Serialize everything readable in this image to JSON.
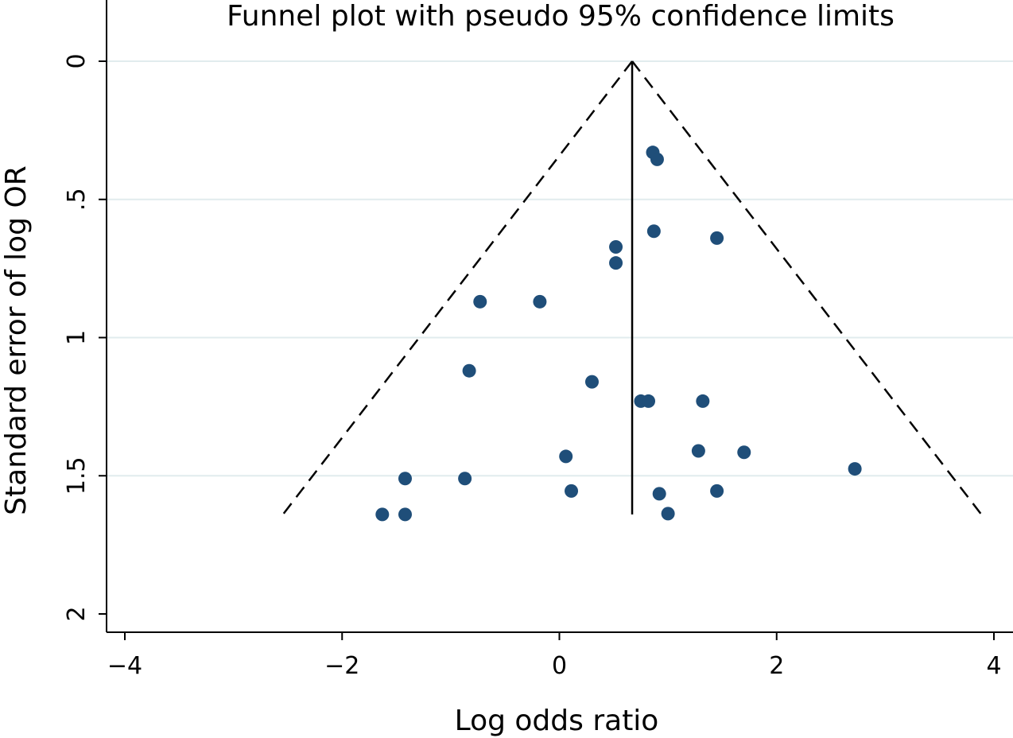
{
  "chart_data": {
    "type": "scatter",
    "title": "Funnel plot with pseudo 95% confidence limits",
    "xlabel": "Log odds ratio",
    "ylabel": "Standard error of log OR",
    "xlim": [
      -4.2,
      4.2
    ],
    "ylim": [
      0,
      2.07
    ],
    "y_reversed": true,
    "grid": "horizontal",
    "x_ticks": [
      {
        "value": -4,
        "label": "−4"
      },
      {
        "value": -2,
        "label": "−2"
      },
      {
        "value": 0,
        "label": "0"
      },
      {
        "value": 2,
        "label": "2"
      },
      {
        "value": 4,
        "label": "4"
      }
    ],
    "y_ticks": [
      {
        "value": 0,
        "label": "0"
      },
      {
        "value": 0.5,
        "label": ".5"
      },
      {
        "value": 1,
        "label": "1"
      },
      {
        "value": 1.5,
        "label": "1.5"
      },
      {
        "value": 2,
        "label": "2"
      }
    ],
    "pooled_estimate": 0.67,
    "max_se": 1.64,
    "ci_multiplier": 1.96,
    "points": [
      {
        "x": 0.86,
        "y": 0.33
      },
      {
        "x": 0.9,
        "y": 0.355
      },
      {
        "x": 0.87,
        "y": 0.615
      },
      {
        "x": 1.45,
        "y": 0.64
      },
      {
        "x": 0.52,
        "y": 0.672
      },
      {
        "x": 0.52,
        "y": 0.73
      },
      {
        "x": -0.73,
        "y": 0.87
      },
      {
        "x": -0.18,
        "y": 0.87
      },
      {
        "x": -0.83,
        "y": 1.12
      },
      {
        "x": 0.3,
        "y": 1.16
      },
      {
        "x": 0.75,
        "y": 1.23
      },
      {
        "x": 0.82,
        "y": 1.23
      },
      {
        "x": 1.32,
        "y": 1.23
      },
      {
        "x": 1.28,
        "y": 1.41
      },
      {
        "x": 1.7,
        "y": 1.415
      },
      {
        "x": 0.06,
        "y": 1.43
      },
      {
        "x": 2.72,
        "y": 1.475
      },
      {
        "x": -1.42,
        "y": 1.51
      },
      {
        "x": -0.87,
        "y": 1.51
      },
      {
        "x": 0.11,
        "y": 1.555
      },
      {
        "x": 1.45,
        "y": 1.555
      },
      {
        "x": 0.92,
        "y": 1.565
      },
      {
        "x": -1.63,
        "y": 1.64
      },
      {
        "x": -1.42,
        "y": 1.64
      },
      {
        "x": 1.0,
        "y": 1.637
      }
    ],
    "point_color": "#1f4e79",
    "grid_color": "#e1ecee"
  }
}
